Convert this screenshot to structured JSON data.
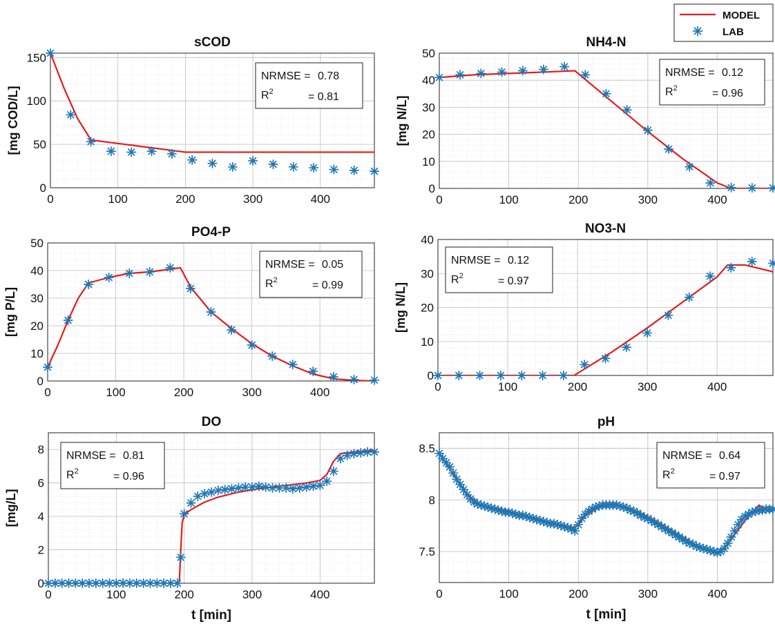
{
  "legend": {
    "model_label": "MODEL",
    "lab_label": "LAB",
    "model_color": "#e41a1c",
    "lab_color": "#1f77b4"
  },
  "chart_data": [
    {
      "type": "line",
      "title": "sCOD",
      "ylabel": "[mg COD/L]",
      "xlabel": "",
      "xlim": [
        0,
        480
      ],
      "ylim": [
        0,
        155
      ],
      "xticks": [
        0,
        100,
        200,
        300,
        400
      ],
      "yticks": [
        0,
        50,
        100,
        150
      ],
      "grid": true,
      "stats_position": "top-right",
      "nrmse_label": "NRMSE =",
      "nrmse_value": "0.78",
      "r2_label": "R",
      "r2_sup": "2",
      "r2_value": "= 0.81",
      "series": [
        {
          "name": "MODEL",
          "x": [
            0,
            20,
            40,
            60,
            100,
            150,
            200,
            300,
            400,
            480
          ],
          "y": [
            155,
            115,
            80,
            55,
            51,
            46,
            41,
            41,
            41,
            41
          ]
        },
        {
          "name": "LAB",
          "x": [
            0,
            30,
            60,
            90,
            120,
            150,
            180,
            210,
            240,
            270,
            300,
            330,
            360,
            390,
            420,
            450,
            480
          ],
          "y": [
            155,
            84,
            53,
            42,
            41,
            42,
            39,
            32,
            28,
            24,
            31,
            27,
            24,
            23,
            21,
            20,
            19
          ]
        }
      ]
    },
    {
      "type": "line",
      "title": "NH4-N",
      "ylabel": "[mg N/L]",
      "xlabel": "",
      "xlim": [
        0,
        480
      ],
      "ylim": [
        0,
        50
      ],
      "xticks": [
        0,
        100,
        200,
        300,
        400
      ],
      "yticks": [
        0,
        10,
        20,
        30,
        40,
        50
      ],
      "grid": true,
      "stats_position": "top-right",
      "nrmse_label": "NRMSE =",
      "nrmse_value": "0.12",
      "r2_label": "R",
      "r2_sup": "2",
      "r2_value": "= 0.96",
      "series": [
        {
          "name": "MODEL",
          "x": [
            0,
            50,
            100,
            150,
            195,
            300,
            350,
            400,
            420,
            480
          ],
          "y": [
            41,
            42,
            42.5,
            43,
            43.5,
            21,
            11,
            2,
            0,
            0
          ]
        },
        {
          "name": "LAB",
          "x": [
            0,
            30,
            60,
            90,
            120,
            150,
            180,
            210,
            240,
            270,
            300,
            330,
            360,
            390,
            420,
            450,
            480
          ],
          "y": [
            41,
            42,
            42.5,
            43,
            43.5,
            44,
            45,
            42,
            35,
            29,
            21.5,
            14.5,
            8,
            2,
            0.3,
            0.2,
            0.2
          ]
        }
      ]
    },
    {
      "type": "line",
      "title": "PO4-P",
      "ylabel": "[mg P/L]",
      "xlabel": "",
      "xlim": [
        0,
        480
      ],
      "ylim": [
        0,
        50
      ],
      "xticks": [
        0,
        100,
        200,
        300,
        400
      ],
      "yticks": [
        0,
        10,
        20,
        30,
        40,
        50
      ],
      "grid": true,
      "stats_position": "top-right",
      "nrmse_label": "NRMSE =",
      "nrmse_value": "0.05",
      "r2_label": "R",
      "r2_sup": "2",
      "r2_value": "= 0.99",
      "series": [
        {
          "name": "MODEL",
          "x": [
            0,
            15,
            30,
            45,
            60,
            90,
            120,
            150,
            180,
            195,
            210,
            240,
            270,
            300,
            330,
            360,
            390,
            420,
            450,
            480
          ],
          "y": [
            5,
            13,
            22,
            30,
            35.5,
            37.5,
            39,
            39.5,
            40.5,
            41,
            34,
            25,
            19,
            13.5,
            9,
            5.5,
            2.5,
            0.8,
            0.2,
            0
          ]
        },
        {
          "name": "LAB",
          "x": [
            0,
            30,
            60,
            90,
            120,
            150,
            180,
            210,
            240,
            270,
            300,
            330,
            360,
            390,
            420,
            450,
            480
          ],
          "y": [
            5,
            22,
            35,
            37.5,
            39,
            39.5,
            41,
            33.5,
            25,
            18.5,
            13,
            9,
            6,
            3.5,
            1.5,
            0.5,
            0.3
          ]
        }
      ]
    },
    {
      "type": "line",
      "title": "NO3-N",
      "ylabel": "[mg N/L]",
      "xlabel": "",
      "xlim": [
        0,
        480
      ],
      "ylim": [
        0,
        40
      ],
      "xticks": [
        0,
        100,
        200,
        300,
        400
      ],
      "yticks": [
        0,
        10,
        20,
        30,
        40
      ],
      "grid": true,
      "stats_position": "top-left",
      "nrmse_label": "NRMSE =",
      "nrmse_value": "0.12",
      "r2_label": "R",
      "r2_sup": "2",
      "r2_value": "= 0.97",
      "series": [
        {
          "name": "MODEL",
          "x": [
            0,
            100,
            195,
            250,
            300,
            350,
            400,
            415,
            440,
            480
          ],
          "y": [
            0,
            0,
            0,
            7,
            14,
            21.5,
            29,
            32.5,
            32.5,
            30.5
          ]
        },
        {
          "name": "LAB",
          "x": [
            0,
            30,
            60,
            90,
            120,
            150,
            180,
            210,
            240,
            270,
            300,
            330,
            360,
            390,
            420,
            450,
            480
          ],
          "y": [
            0,
            0,
            0,
            0,
            0,
            0,
            0,
            3.2,
            5,
            8.3,
            12.5,
            17.7,
            23,
            29.2,
            31.7,
            33.5,
            33
          ]
        }
      ]
    },
    {
      "type": "line",
      "title": "DO",
      "ylabel": "[mg/L]",
      "xlabel": "t [min]",
      "xlim": [
        0,
        480
      ],
      "ylim": [
        0,
        9
      ],
      "xticks": [
        0,
        100,
        200,
        300,
        400
      ],
      "yticks": [
        0,
        2,
        4,
        6,
        8
      ],
      "grid": true,
      "stats_position": "top-left",
      "nrmse_label": "NRMSE =",
      "nrmse_value": "0.81",
      "r2_label": "R",
      "r2_sup": "2",
      "r2_value": "= 0.96",
      "series": [
        {
          "name": "MODEL",
          "x": [
            0,
            192,
            193,
            195,
            197,
            200,
            210,
            230,
            250,
            280,
            310,
            350,
            380,
            400,
            410,
            420,
            430,
            450,
            480
          ],
          "y": [
            0,
            0,
            0.2,
            2,
            3.6,
            4.1,
            4.4,
            4.85,
            5.15,
            5.45,
            5.65,
            5.85,
            6.0,
            6.15,
            6.5,
            7.3,
            7.75,
            7.85,
            7.95
          ]
        },
        {
          "name": "LAB",
          "x": [
            0,
            10,
            20,
            30,
            40,
            50,
            60,
            70,
            80,
            90,
            100,
            110,
            120,
            130,
            140,
            150,
            160,
            170,
            180,
            190,
            195,
            200,
            210,
            220,
            230,
            240,
            250,
            260,
            270,
            280,
            290,
            300,
            310,
            320,
            330,
            340,
            350,
            360,
            370,
            380,
            390,
            400,
            410,
            420,
            430,
            440,
            450,
            460,
            470,
            480
          ],
          "y": [
            0,
            0,
            0,
            0,
            0,
            0,
            0,
            0,
            0,
            0,
            0,
            0,
            0,
            0,
            0,
            0,
            0,
            0,
            0,
            0,
            1.55,
            4.15,
            4.8,
            5.2,
            5.35,
            5.45,
            5.55,
            5.6,
            5.65,
            5.7,
            5.75,
            5.75,
            5.8,
            5.75,
            5.7,
            5.7,
            5.7,
            5.65,
            5.7,
            5.75,
            5.8,
            5.85,
            6.1,
            6.7,
            7.45,
            7.65,
            7.75,
            7.8,
            7.85,
            7.85
          ]
        }
      ]
    },
    {
      "type": "line",
      "title": "pH",
      "ylabel": "",
      "xlabel": "t [min]",
      "xlim": [
        0,
        480
      ],
      "ylim": [
        7.2,
        8.65
      ],
      "xticks": [
        0,
        100,
        200,
        300,
        400
      ],
      "yticks": [
        7.5,
        8,
        8.5
      ],
      "grid": true,
      "stats_position": "top-right",
      "nrmse_label": "NRMSE =",
      "nrmse_value": "0.64",
      "r2_label": "R",
      "r2_sup": "2",
      "r2_value": "= 0.97",
      "series": [
        {
          "name": "MODEL",
          "x": [
            0,
            20,
            40,
            60,
            80,
            100,
            120,
            140,
            160,
            180,
            195,
            210,
            230,
            250,
            270,
            290,
            310,
            330,
            350,
            370,
            390,
            405,
            420,
            440,
            460,
            470,
            480
          ],
          "y": [
            8.45,
            8.25,
            8.05,
            7.95,
            7.92,
            7.89,
            7.85,
            7.82,
            7.78,
            7.75,
            7.73,
            7.85,
            7.93,
            7.96,
            7.93,
            7.87,
            7.8,
            7.72,
            7.64,
            7.56,
            7.5,
            7.5,
            7.62,
            7.8,
            7.95,
            7.9,
            7.9
          ]
        },
        {
          "name": "LAB",
          "x": [
            0,
            5,
            10,
            15,
            20,
            25,
            30,
            35,
            40,
            45,
            50,
            55,
            60,
            65,
            70,
            75,
            80,
            85,
            90,
            95,
            100,
            105,
            110,
            115,
            120,
            125,
            130,
            135,
            140,
            145,
            150,
            155,
            160,
            165,
            170,
            175,
            180,
            185,
            190,
            195,
            200,
            205,
            210,
            215,
            220,
            225,
            230,
            235,
            240,
            245,
            250,
            255,
            260,
            265,
            270,
            275,
            280,
            285,
            290,
            295,
            300,
            305,
            310,
            315,
            320,
            325,
            330,
            335,
            340,
            345,
            350,
            355,
            360,
            365,
            370,
            375,
            380,
            385,
            390,
            395,
            400,
            405,
            410,
            415,
            420,
            425,
            430,
            435,
            440,
            445,
            450,
            455,
            460,
            465,
            470,
            475,
            480
          ],
          "y": [
            8.45,
            8.4,
            8.36,
            8.32,
            8.26,
            8.2,
            8.15,
            8.1,
            8.05,
            8.01,
            7.98,
            7.96,
            7.95,
            7.94,
            7.93,
            7.92,
            7.91,
            7.9,
            7.89,
            7.88,
            7.88,
            7.87,
            7.86,
            7.85,
            7.85,
            7.84,
            7.83,
            7.82,
            7.81,
            7.8,
            7.79,
            7.78,
            7.77,
            7.77,
            7.76,
            7.75,
            7.74,
            7.73,
            7.72,
            7.7,
            7.76,
            7.82,
            7.86,
            7.89,
            7.91,
            7.93,
            7.94,
            7.95,
            7.95,
            7.95,
            7.95,
            7.95,
            7.94,
            7.93,
            7.92,
            7.9,
            7.89,
            7.87,
            7.85,
            7.83,
            7.82,
            7.8,
            7.78,
            7.76,
            7.74,
            7.72,
            7.7,
            7.68,
            7.66,
            7.64,
            7.62,
            7.6,
            7.58,
            7.57,
            7.55,
            7.54,
            7.53,
            7.52,
            7.51,
            7.5,
            7.49,
            7.5,
            7.53,
            7.58,
            7.64,
            7.7,
            7.76,
            7.81,
            7.84,
            7.86,
            7.88,
            7.89,
            7.9,
            7.9,
            7.91,
            7.91,
            7.91
          ]
        }
      ]
    }
  ]
}
